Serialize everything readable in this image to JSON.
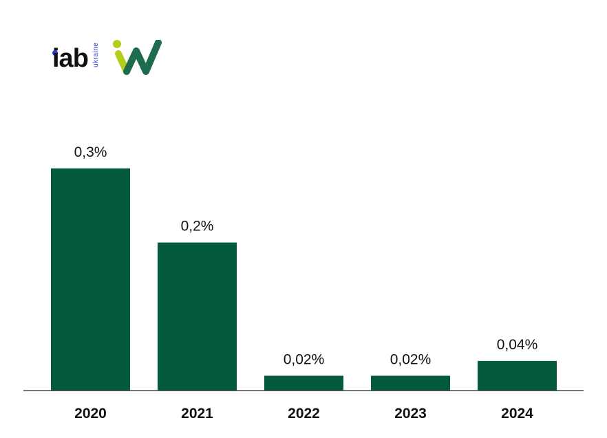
{
  "logos": {
    "iab_text": "iab",
    "ukraine_text": "ukraine",
    "iab_color": "#111111",
    "iab_dot_color": "#2a3bd6",
    "iw_green": "#1f6b4d",
    "iw_lime": "#b5cc1a"
  },
  "chart_data": {
    "type": "bar",
    "title": "",
    "xlabel": "",
    "ylabel": "",
    "categories": [
      "2020",
      "2021",
      "2022",
      "2023",
      "2024"
    ],
    "values": [
      0.3,
      0.2,
      0.02,
      0.02,
      0.04
    ],
    "value_labels": [
      "0,3%",
      "0,2%",
      "0,02%",
      "0,02%",
      "0,04%"
    ],
    "ylim": [
      0,
      0.3
    ],
    "grid": false,
    "legend": "none",
    "bar_color": "#035a3d"
  }
}
